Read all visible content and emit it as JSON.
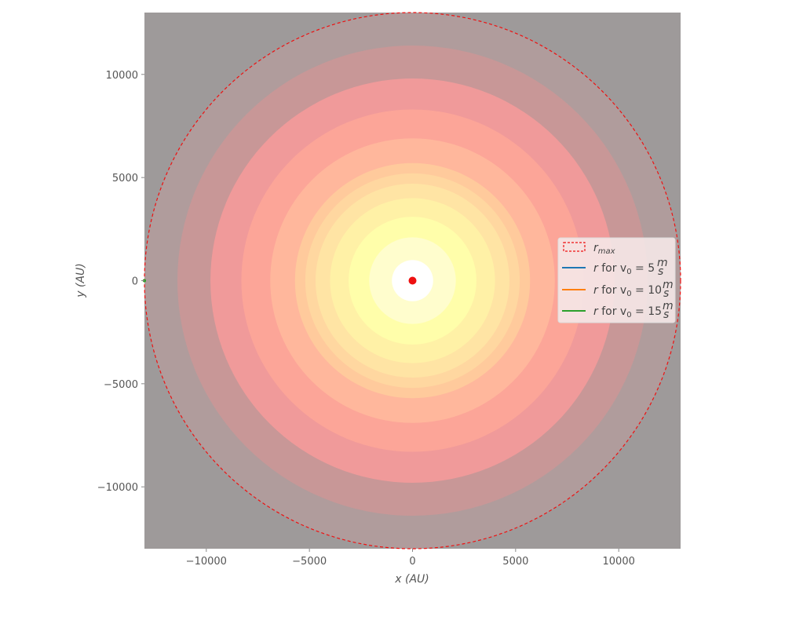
{
  "chart_data": {
    "type": "contour",
    "title": "",
    "xlabel": "x (AU)",
    "ylabel": "y (AU)",
    "xlim": [
      -13000,
      13000
    ],
    "ylim": [
      -13000,
      13000
    ],
    "xticks": [
      -10000,
      -5000,
      0,
      5000,
      10000
    ],
    "yticks": [
      -10000,
      -5000,
      0,
      5000,
      10000
    ],
    "xtick_labels": [
      "−10000",
      "−5000",
      "0",
      "5000",
      "10000"
    ],
    "ytick_labels": [
      "−10000",
      "−5000",
      "0",
      "5000",
      "10000"
    ],
    "grid": false,
    "legend_position": "center-right",
    "background_color": "#9e9a9a",
    "contour_rings": [
      {
        "r_outer": 13000,
        "color": "#b09c9c"
      },
      {
        "r_outer": 11400,
        "color": "#c89797"
      },
      {
        "r_outer": 9800,
        "color": "#f09a9a"
      },
      {
        "r_outer": 8300,
        "color": "#fca598"
      },
      {
        "r_outer": 6900,
        "color": "#ffb79c"
      },
      {
        "r_outer": 5700,
        "color": "#ffca9c"
      },
      {
        "r_outer": 5200,
        "color": "#ffd7a0"
      },
      {
        "r_outer": 4700,
        "color": "#ffe4a4"
      },
      {
        "r_outer": 4000,
        "color": "#fff1a6"
      },
      {
        "r_outer": 3100,
        "color": "#fffeaa"
      },
      {
        "r_outer": 2100,
        "color": "#fffdcd"
      },
      {
        "r_outer": 1000,
        "color": "#ffffff"
      }
    ],
    "r_max": 13000,
    "center_point": {
      "x": 0,
      "y": 0,
      "color": "#ee1111"
    },
    "series": [
      {
        "name": "r for v0 = 5 m/s",
        "color": "#1f77b4",
        "x": [
          -13000
        ],
        "y": [
          0
        ]
      },
      {
        "name": "r for v0 = 10 m/s",
        "color": "#ff7f0e",
        "x": [
          -13000
        ],
        "y": [
          0
        ]
      },
      {
        "name": "r for v0 = 15 m/s",
        "color": "#2ca02c",
        "x": [
          -13000
        ],
        "y": [
          0
        ]
      }
    ],
    "legend": {
      "rmax_symbol": "r",
      "rmax_subscript": "max",
      "rmax_color": "#ee1111",
      "entries": [
        {
          "r": "r",
          "for": " for v",
          "sub": "0",
          "eq": " = 5 ",
          "num": "m",
          "den": "s",
          "color": "#1f77b4"
        },
        {
          "r": "r",
          "for": " for v",
          "sub": "0",
          "eq": " = 10 ",
          "num": "m",
          "den": "s",
          "color": "#ff7f0e"
        },
        {
          "r": "r",
          "for": " for v",
          "sub": "0",
          "eq": " = 15 ",
          "num": "m",
          "den": "s",
          "color": "#2ca02c"
        }
      ]
    }
  }
}
